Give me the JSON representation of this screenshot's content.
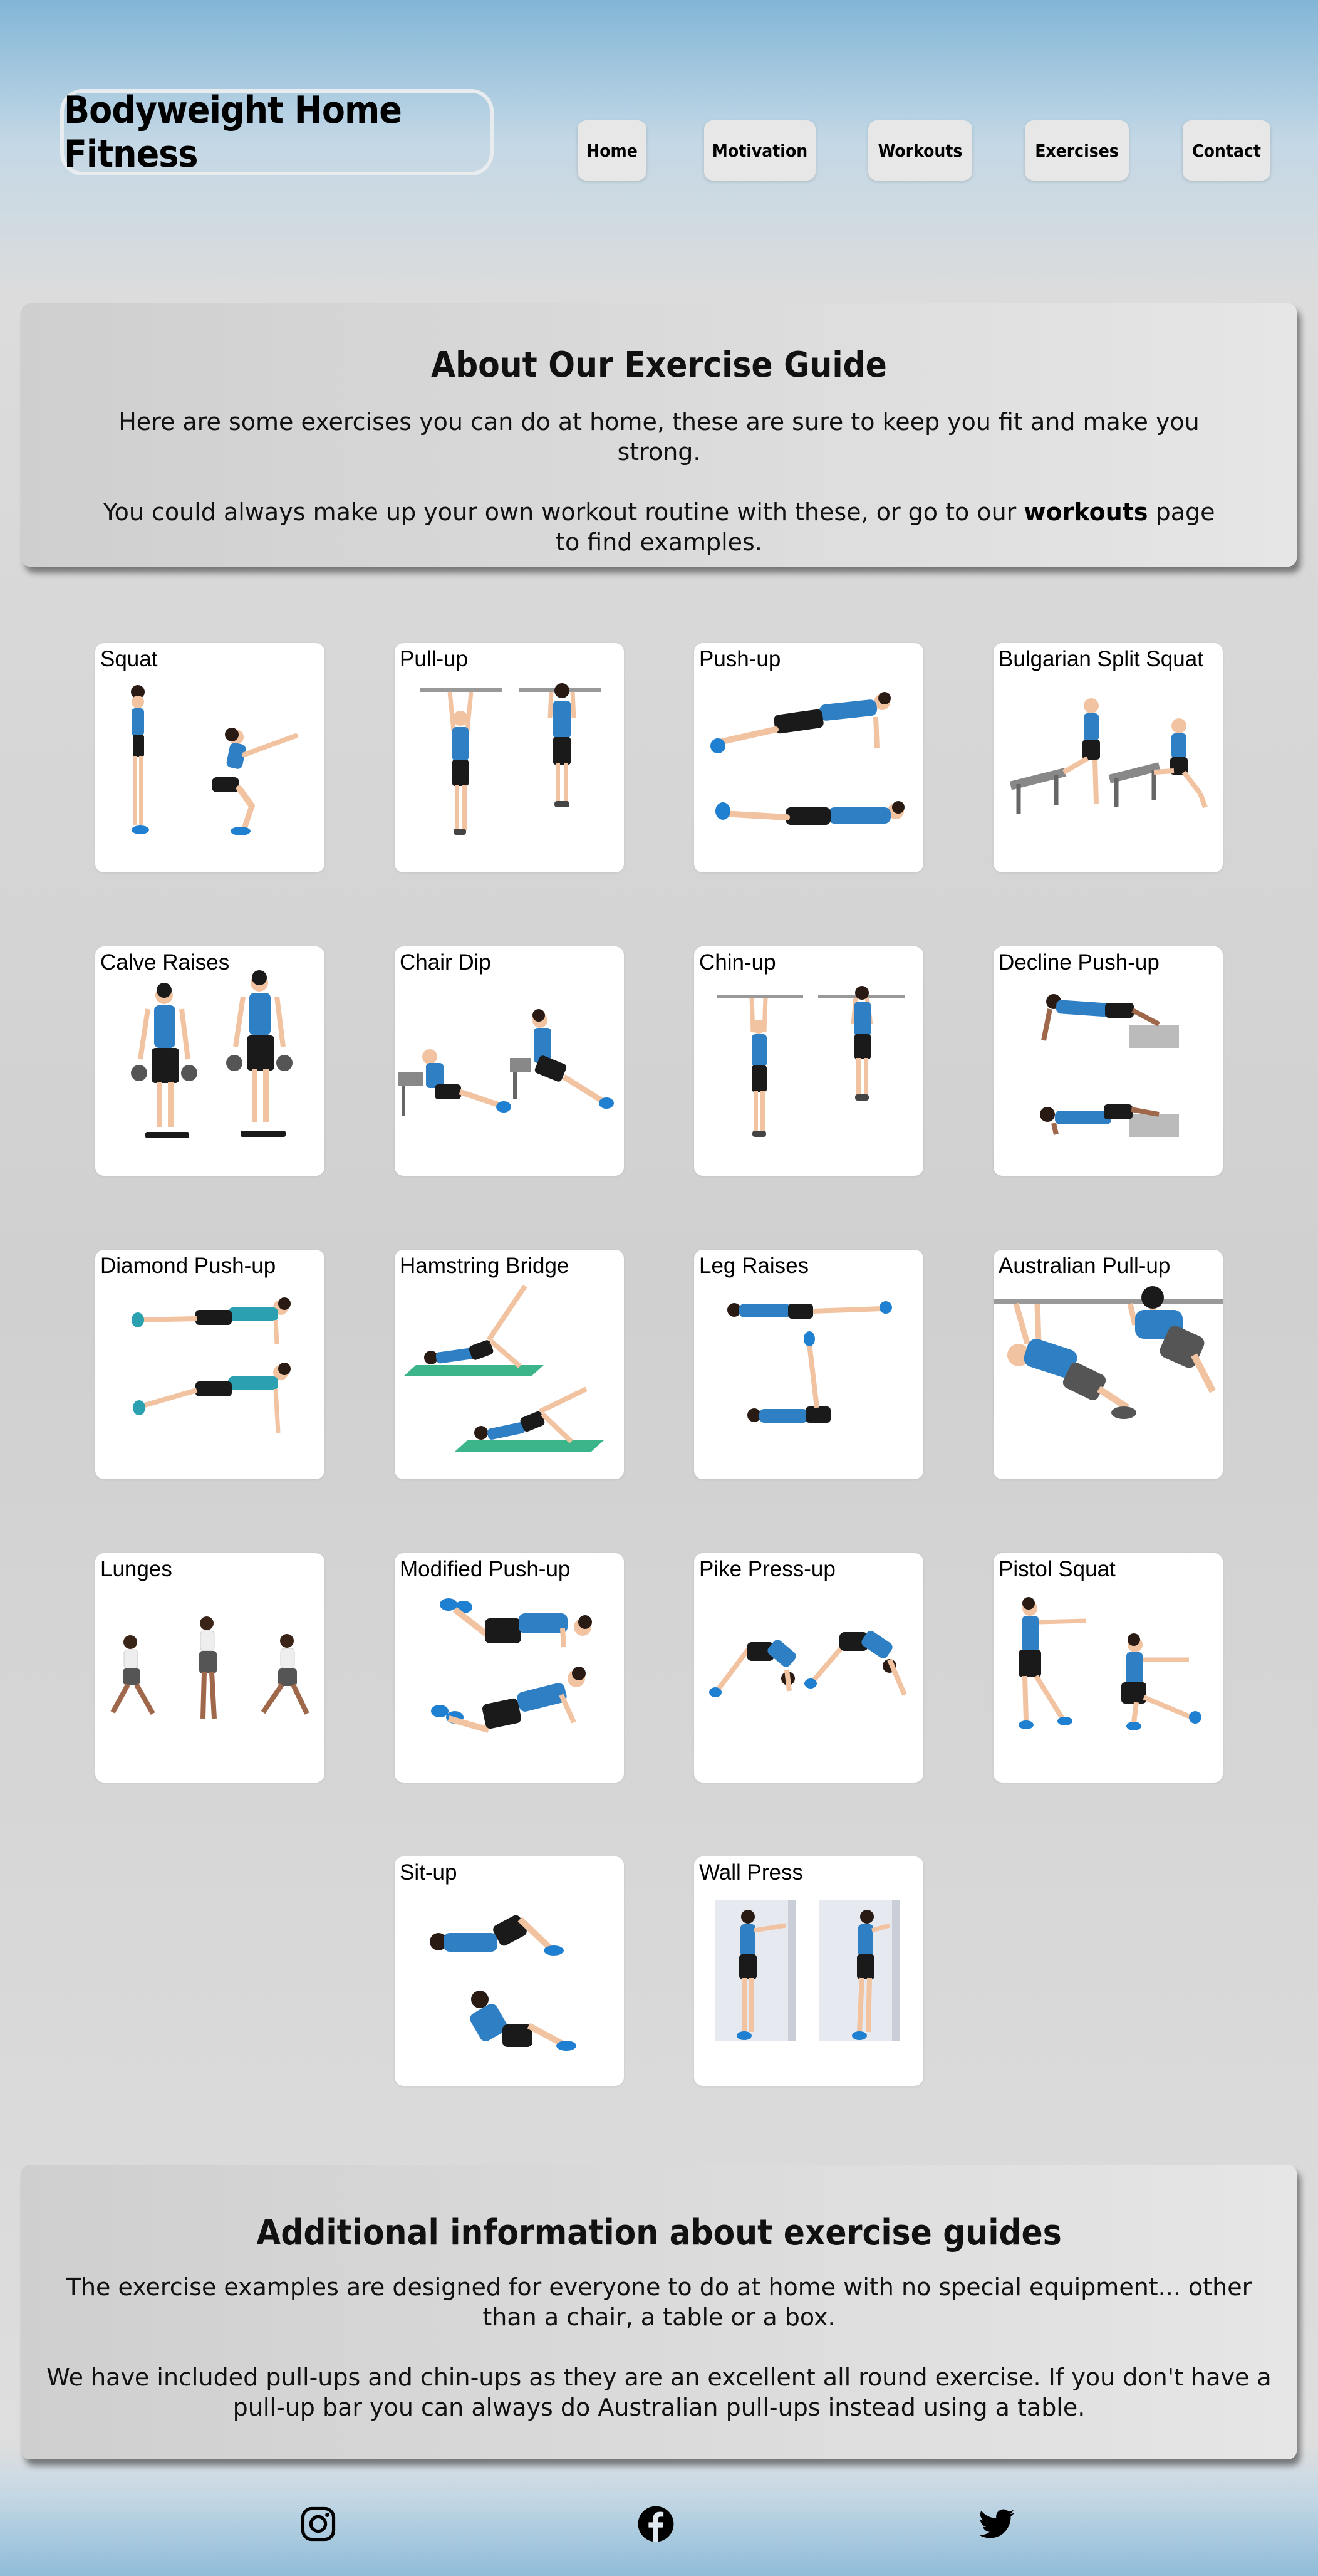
{
  "header": {
    "logo": "Bodyweight Home Fitness",
    "nav": [
      "Home",
      "Motivation",
      "Workouts",
      "Exercises",
      "Contact"
    ]
  },
  "about": {
    "title": "About Our Exercise Guide",
    "p1": "Here are some exercises you can do at home, these are sure to keep you fit and make you strong.",
    "p2_before": "You could always make up your own workout routine with these, or go to our ",
    "p2_link": "workouts",
    "p2_after": " page to find examples."
  },
  "exercises": [
    {
      "label": "Squat",
      "illustration": "squat"
    },
    {
      "label": "Pull-up",
      "illustration": "pull-up"
    },
    {
      "label": "Push-up",
      "illustration": "push-up"
    },
    {
      "label": "Bulgarian Split Squat",
      "illustration": "bulgarian-split-squat"
    },
    {
      "label": "Calve Raises",
      "illustration": "calve-raises"
    },
    {
      "label": "Chair Dip",
      "illustration": "chair-dip"
    },
    {
      "label": "Chin-up",
      "illustration": "chin-up"
    },
    {
      "label": "Decline Push-up",
      "illustration": "decline-push-up"
    },
    {
      "label": "Diamond Push-up",
      "illustration": "diamond-push-up"
    },
    {
      "label": "Hamstring Bridge",
      "illustration": "hamstring-bridge"
    },
    {
      "label": "Leg Raises",
      "illustration": "leg-raises"
    },
    {
      "label": "Australian Pull-up",
      "illustration": "australian-pull-up"
    },
    {
      "label": "Lunges",
      "illustration": "lunges"
    },
    {
      "label": "Modified Push-up",
      "illustration": "modified-push-up"
    },
    {
      "label": "Pike Press-up",
      "illustration": "pike-press-up"
    },
    {
      "label": "Pistol Squat",
      "illustration": "pistol-squat"
    },
    {
      "label": "Sit-up",
      "illustration": "sit-up"
    },
    {
      "label": "Wall Press",
      "illustration": "wall-press"
    }
  ],
  "additional": {
    "title": "Additional information about exercise guides",
    "p1": "The exercise examples are designed for everyone to do at home with no special equipment... other than a chair, a table or a box.",
    "p2": "We have included pull-ups and chin-ups as they are an excellent all round exercise. If you don't have a pull-up bar you can always do Australian pull-ups instead using a table."
  },
  "footer": {
    "icons": [
      "instagram-icon",
      "facebook-icon",
      "twitter-icon"
    ]
  },
  "colors": {
    "shirt": "#2f7fc4",
    "shorts": "#1a1a1a",
    "skin": "#f2c3a1",
    "shoes": "#1f7fd0",
    "equipment": "#888888",
    "mat": "#3db58a"
  }
}
